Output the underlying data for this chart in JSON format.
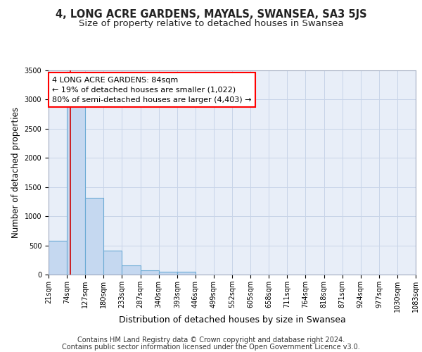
{
  "title": "4, LONG ACRE GARDENS, MAYALS, SWANSEA, SA3 5JS",
  "subtitle": "Size of property relative to detached houses in Swansea",
  "xlabel": "Distribution of detached houses by size in Swansea",
  "ylabel": "Number of detached properties",
  "bin_edges": [
    21,
    74,
    127,
    180,
    233,
    287,
    340,
    393,
    446,
    499,
    552,
    605,
    658,
    711,
    764,
    818,
    871,
    924,
    977,
    1030,
    1083
  ],
  "bar_heights": [
    580,
    2950,
    1310,
    415,
    160,
    75,
    50,
    50,
    0,
    0,
    0,
    0,
    0,
    0,
    0,
    0,
    0,
    0,
    0,
    0
  ],
  "bar_color": "#c5d8f0",
  "bar_edge_color": "#6aaad4",
  "property_size": 84,
  "annotation_line1": "4 LONG ACRE GARDENS: 84sqm",
  "annotation_line2": "← 19% of detached houses are smaller (1,022)",
  "annotation_line3": "80% of semi-detached houses are larger (4,403) →",
  "vline_color": "#cc0000",
  "grid_color": "#c8d4e8",
  "background_color": "#e8eef8",
  "footer_line1": "Contains HM Land Registry data © Crown copyright and database right 2024.",
  "footer_line2": "Contains public sector information licensed under the Open Government Licence v3.0.",
  "ylim": [
    0,
    3500
  ],
  "yticks": [
    0,
    500,
    1000,
    1500,
    2000,
    2500,
    3000,
    3500
  ],
  "title_fontsize": 10.5,
  "subtitle_fontsize": 9.5,
  "xlabel_fontsize": 9,
  "ylabel_fontsize": 8.5,
  "tick_fontsize": 7,
  "annotation_fontsize": 8,
  "footer_fontsize": 7
}
